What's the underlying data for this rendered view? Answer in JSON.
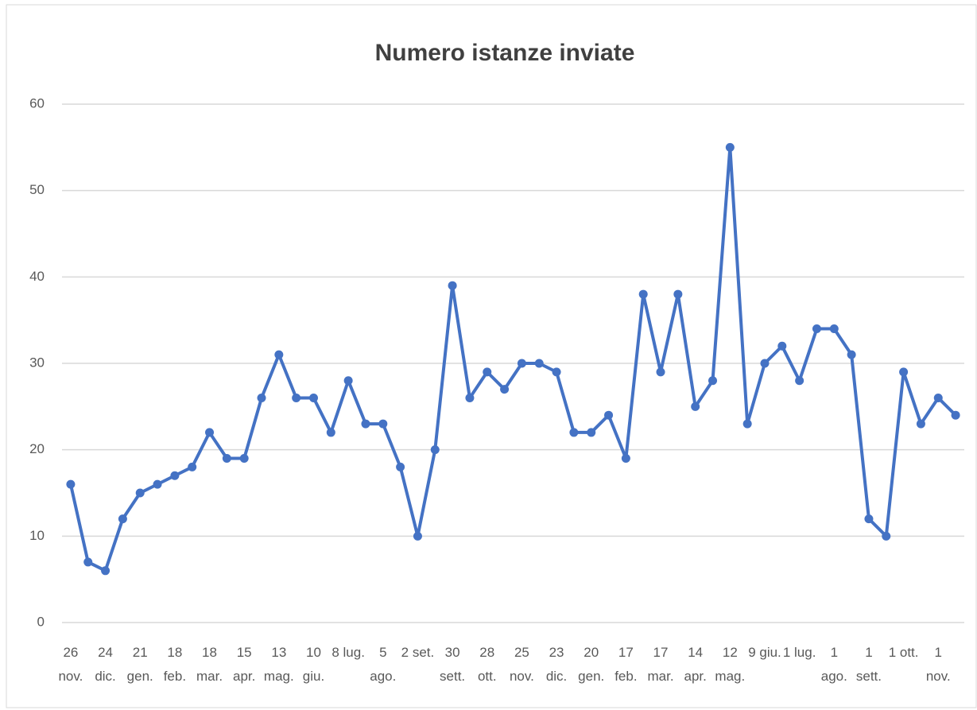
{
  "chart_data": {
    "type": "line",
    "title": "Numero istanze inviate",
    "categories": [
      "26 nov.",
      null,
      "24 dic.",
      null,
      "21 gen.",
      null,
      "18 feb.",
      null,
      "18 mar.",
      null,
      "15 apr.",
      null,
      "13 mag.",
      null,
      "10 giu.",
      null,
      "8 lug.",
      null,
      "5 ago.",
      null,
      "2 set.",
      null,
      "30 sett.",
      null,
      "28 ott.",
      null,
      "25 nov.",
      null,
      "23 dic.",
      null,
      "20 gen.",
      null,
      "17 feb.",
      null,
      "17 mar.",
      null,
      "14 apr.",
      null,
      "12 mag.",
      null,
      "9 giu.",
      null,
      "1 lug.",
      null,
      "1 ago.",
      null,
      "1 sett.",
      null,
      "1 ott.",
      null,
      "1 nov.",
      null
    ],
    "series": [
      {
        "name": "Numero istanze inviate",
        "color": "#4472c4",
        "values": [
          16,
          7,
          6,
          12,
          15,
          16,
          17,
          18,
          22,
          19,
          19,
          26,
          31,
          26,
          26,
          22,
          28,
          23,
          23,
          18,
          10,
          20,
          39,
          26,
          29,
          27,
          30,
          30,
          29,
          22,
          22,
          24,
          19,
          38,
          29,
          38,
          25,
          28,
          55,
          23,
          30,
          32,
          28,
          34,
          34,
          31,
          12,
          10,
          29,
          23,
          26,
          24
        ]
      }
    ],
    "ylim": [
      0,
      60
    ],
    "yticks": [
      0,
      10,
      20,
      30,
      40,
      50,
      60
    ],
    "grid": true
  }
}
